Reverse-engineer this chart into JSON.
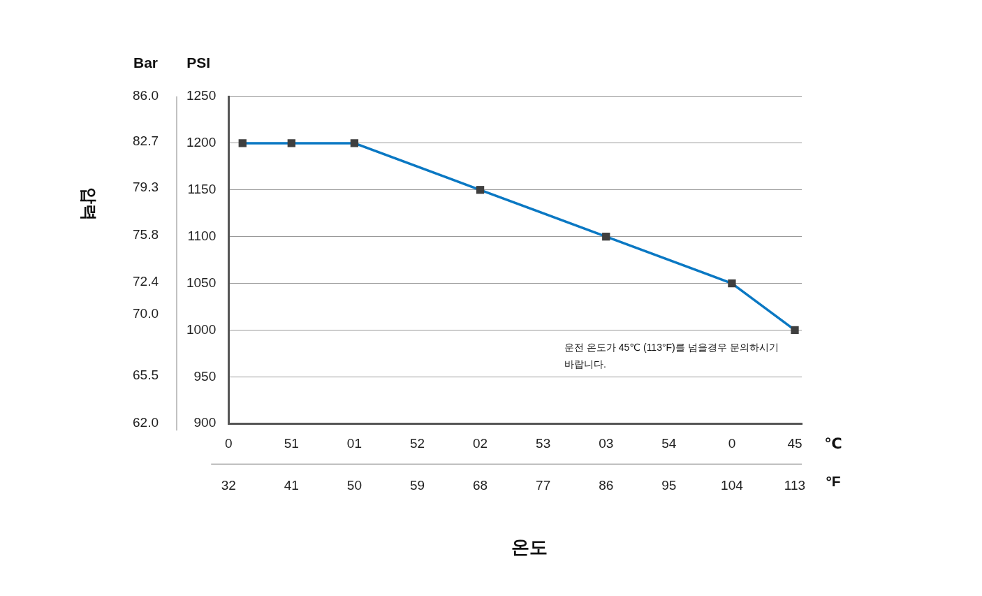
{
  "chart_data": {
    "type": "line",
    "ylabel": "PSI",
    "y2label": "Bar",
    "x2label": "℃",
    "x": [
      34,
      41,
      50,
      68,
      86,
      104,
      113
    ],
    "series": [
      {
        "color": "#0a78c3",
        "colors": [
          "#3f3f3f",
          "#3f3f3f",
          "#3f3f3f",
          "#3f3f3f",
          "#3f3f3f",
          "#3f3f3f",
          "#3f3f3f"
        ],
        "values": [
          1200,
          1200,
          1200,
          1150,
          1100,
          1050,
          1000
        ]
      }
    ],
    "xlim": [
      32,
      114
    ],
    "xticks": [
      32,
      41,
      50,
      59,
      68,
      77,
      86,
      95,
      104,
      113
    ],
    "ylim": [
      900,
      1250
    ],
    "yticks": [
      900,
      950,
      1000,
      1050,
      1100,
      1150,
      1200,
      1250
    ],
    "y2lim": [
      62,
      86
    ],
    "y2ticks": [
      {
        "value": 62,
        "label": "62.0"
      },
      65.5,
      {
        "value": 70,
        "label": "70.0"
      },
      72.4,
      75.8,
      79.3,
      82.7,
      {
        "value": 86,
        "label": "86.0"
      }
    ],
    "annotations": [
      "운전 온도가 45℃ (113°F)를 넘을경우 문의하시기 바랍니다.",
      "압력",
      "°F",
      "온도",
      "0",
      "51",
      "01",
      "52",
      "02",
      "53",
      "03",
      "54",
      "0",
      "45"
    ],
    "grid": "y",
    "marker": "square",
    "line_style": "solid",
    "legend": false
  }
}
